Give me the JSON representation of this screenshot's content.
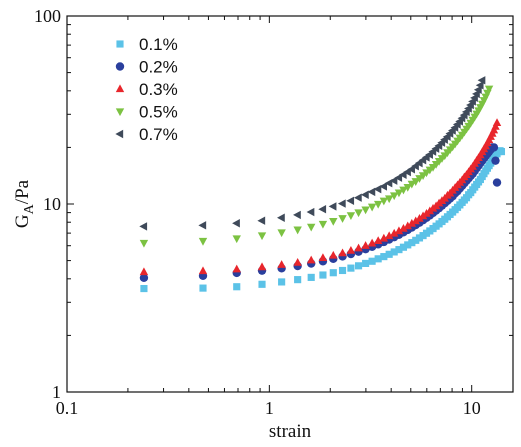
{
  "chart_data": {
    "type": "scatter",
    "xlabel": "strain",
    "ylabel": "G_A/Pa",
    "x_scale": "log",
    "y_scale": "log",
    "xlim": [
      0.1,
      16
    ],
    "ylim": [
      1,
      100
    ],
    "x_ticks": [
      "0.1",
      "1",
      "10"
    ],
    "y_ticks": [
      "1",
      "10",
      "100"
    ],
    "legend_position": "top-left",
    "grid": false,
    "series": [
      {
        "name": "0.1%",
        "color": "#5BC2E7",
        "marker": "square",
        "x": [
          0.24,
          0.47,
          0.69,
          0.92,
          1.15,
          1.38,
          1.61,
          1.84,
          2.07,
          2.3,
          2.53,
          2.76,
          2.99,
          3.22,
          3.45,
          3.68,
          3.91,
          4.14,
          4.37,
          4.6,
          4.83,
          5.06,
          5.29,
          5.52,
          5.75,
          5.98,
          6.21,
          6.44,
          6.67,
          6.9,
          7.13,
          7.36,
          7.59,
          7.82,
          8.05,
          8.28,
          8.51,
          8.74,
          8.97,
          9.2,
          9.43,
          9.66,
          9.89,
          10.12,
          10.35,
          10.58,
          10.81,
          11.04,
          11.27,
          11.5,
          11.73,
          11.96,
          12.19,
          12.42,
          12.65,
          12.88,
          13.11,
          13.34,
          13.57,
          13.8,
          14.03
        ],
        "y": [
          3.55,
          3.57,
          3.63,
          3.74,
          3.85,
          3.96,
          4.07,
          4.19,
          4.31,
          4.43,
          4.56,
          4.69,
          4.83,
          4.96,
          5.11,
          5.25,
          5.4,
          5.56,
          5.72,
          5.89,
          6.06,
          6.23,
          6.41,
          6.6,
          6.79,
          6.99,
          7.19,
          7.4,
          7.62,
          7.84,
          8.07,
          8.3,
          8.55,
          8.8,
          9.06,
          9.33,
          9.6,
          9.89,
          10.2,
          10.5,
          10.8,
          11.2,
          11.5,
          11.9,
          12.3,
          12.7,
          13.1,
          13.5,
          14.0,
          14.5,
          15.0,
          15.5,
          16.0,
          16.5,
          17.0,
          17.5,
          18.0,
          18.5,
          19.0,
          19.2,
          19.0
        ]
      },
      {
        "name": "0.2%",
        "color": "#2A3F9D",
        "marker": "circle",
        "x": [
          0.24,
          0.47,
          0.69,
          0.92,
          1.15,
          1.38,
          1.61,
          1.84,
          2.07,
          2.3,
          2.53,
          2.76,
          2.99,
          3.22,
          3.45,
          3.68,
          3.91,
          4.14,
          4.37,
          4.6,
          4.83,
          5.06,
          5.29,
          5.52,
          5.75,
          5.98,
          6.21,
          6.44,
          6.67,
          6.9,
          7.13,
          7.36,
          7.59,
          7.82,
          8.05,
          8.28,
          8.51,
          8.74,
          8.97,
          9.2,
          9.43,
          9.66,
          9.89,
          10.12,
          10.35,
          10.58,
          10.81,
          11.04,
          11.27,
          11.5,
          11.73,
          11.96,
          12.19,
          12.42,
          12.65,
          12.88,
          13.11,
          13.34
        ],
        "y": [
          4.05,
          4.15,
          4.3,
          4.42,
          4.55,
          4.68,
          4.82,
          4.96,
          5.11,
          5.26,
          5.42,
          5.58,
          5.75,
          5.92,
          6.1,
          6.28,
          6.47,
          6.66,
          6.86,
          7.07,
          7.28,
          7.5,
          7.73,
          7.96,
          8.2,
          8.45,
          8.7,
          8.96,
          9.23,
          9.51,
          9.8,
          10.1,
          10.4,
          10.7,
          11.0,
          11.4,
          11.7,
          12.1,
          12.5,
          12.9,
          13.3,
          13.7,
          14.1,
          14.5,
          15.0,
          15.5,
          16.0,
          16.5,
          17.0,
          17.5,
          18.0,
          18.5,
          19.0,
          19.5,
          20.0,
          20.0,
          17.0,
          13.0
        ]
      },
      {
        "name": "0.3%",
        "color": "#E8262C",
        "marker": "triangle-up",
        "x": [
          0.24,
          0.47,
          0.69,
          0.92,
          1.15,
          1.38,
          1.61,
          1.84,
          2.07,
          2.3,
          2.53,
          2.76,
          2.99,
          3.22,
          3.45,
          3.68,
          3.91,
          4.14,
          4.37,
          4.6,
          4.83,
          5.06,
          5.29,
          5.52,
          5.75,
          5.98,
          6.21,
          6.44,
          6.67,
          6.9,
          7.13,
          7.36,
          7.59,
          7.82,
          8.05,
          8.28,
          8.51,
          8.74,
          8.97,
          9.2,
          9.43,
          9.66,
          9.89,
          10.12,
          10.35,
          10.58,
          10.81,
          11.04,
          11.27,
          11.5,
          11.73,
          11.96,
          12.19,
          12.42,
          12.65,
          12.88,
          13.11,
          13.34
        ],
        "y": [
          4.35,
          4.4,
          4.5,
          4.62,
          4.75,
          4.88,
          5.02,
          5.17,
          5.32,
          5.48,
          5.65,
          5.82,
          6.0,
          6.18,
          6.37,
          6.56,
          6.76,
          6.97,
          7.18,
          7.4,
          7.63,
          7.87,
          8.11,
          8.36,
          8.62,
          8.89,
          9.17,
          9.46,
          9.75,
          10.1,
          10.4,
          10.7,
          11.1,
          11.4,
          11.8,
          12.2,
          12.6,
          13.0,
          13.4,
          13.9,
          14.3,
          14.8,
          15.3,
          15.8,
          16.4,
          17.0,
          17.6,
          18.2,
          18.9,
          19.6,
          20.3,
          21.1,
          21.9,
          22.8,
          23.7,
          24.7,
          25.8,
          27.0
        ]
      },
      {
        "name": "0.5%",
        "color": "#7CC242",
        "marker": "triangle-down",
        "x": [
          0.24,
          0.47,
          0.69,
          0.92,
          1.15,
          1.38,
          1.61,
          1.84,
          2.07,
          2.3,
          2.53,
          2.76,
          2.99,
          3.22,
          3.45,
          3.68,
          3.91,
          4.14,
          4.37,
          4.6,
          4.83,
          5.06,
          5.29,
          5.52,
          5.75,
          5.98,
          6.21,
          6.44,
          6.67,
          6.9,
          7.13,
          7.36,
          7.59,
          7.82,
          8.05,
          8.28,
          8.51,
          8.74,
          8.97,
          9.2,
          9.43,
          9.66,
          9.89,
          10.12,
          10.35,
          10.58,
          10.81,
          11.04,
          11.27,
          11.5,
          11.73,
          11.96,
          12.19
        ],
        "y": [
          6.2,
          6.35,
          6.55,
          6.8,
          7.05,
          7.3,
          7.56,
          7.83,
          8.11,
          8.4,
          8.7,
          9.01,
          9.33,
          9.66,
          10.0,
          10.4,
          10.7,
          11.1,
          11.5,
          11.9,
          12.3,
          12.8,
          13.2,
          13.7,
          14.2,
          14.7,
          15.2,
          15.7,
          16.3,
          16.9,
          17.5,
          18.1,
          18.8,
          19.5,
          20.2,
          20.9,
          21.7,
          22.5,
          23.3,
          24.2,
          25.1,
          26.0,
          27.0,
          28.0,
          29.1,
          30.2,
          31.4,
          32.7,
          34.1,
          35.6,
          37.2,
          39.0,
          41.0
        ]
      },
      {
        "name": "0.7%",
        "color": "#3F4A5A",
        "marker": "triangle-left",
        "x": [
          0.24,
          0.47,
          0.69,
          0.92,
          1.15,
          1.38,
          1.61,
          1.84,
          2.07,
          2.3,
          2.53,
          2.76,
          2.99,
          3.22,
          3.45,
          3.68,
          3.91,
          4.14,
          4.37,
          4.6,
          4.83,
          5.06,
          5.29,
          5.52,
          5.75,
          5.98,
          6.21,
          6.44,
          6.67,
          6.9,
          7.13,
          7.36,
          7.59,
          7.82,
          8.05,
          8.28,
          8.51,
          8.74,
          8.97,
          9.2,
          9.43,
          9.66,
          9.89,
          10.12,
          10.35,
          10.58,
          10.81,
          11.04,
          11.27
        ],
        "y": [
          7.6,
          7.7,
          7.9,
          8.15,
          8.45,
          8.75,
          9.06,
          9.38,
          9.71,
          10.05,
          10.4,
          10.8,
          11.2,
          11.6,
          12.0,
          12.4,
          12.9,
          13.3,
          13.8,
          14.3,
          14.8,
          15.3,
          15.9,
          16.5,
          17.1,
          17.7,
          18.3,
          19.0,
          19.7,
          20.4,
          21.2,
          22.0,
          22.8,
          23.7,
          24.6,
          25.5,
          26.5,
          27.5,
          28.6,
          29.7,
          30.9,
          32.2,
          33.6,
          35.1,
          36.7,
          38.5,
          40.5,
          42.8,
          45.5
        ]
      }
    ]
  }
}
